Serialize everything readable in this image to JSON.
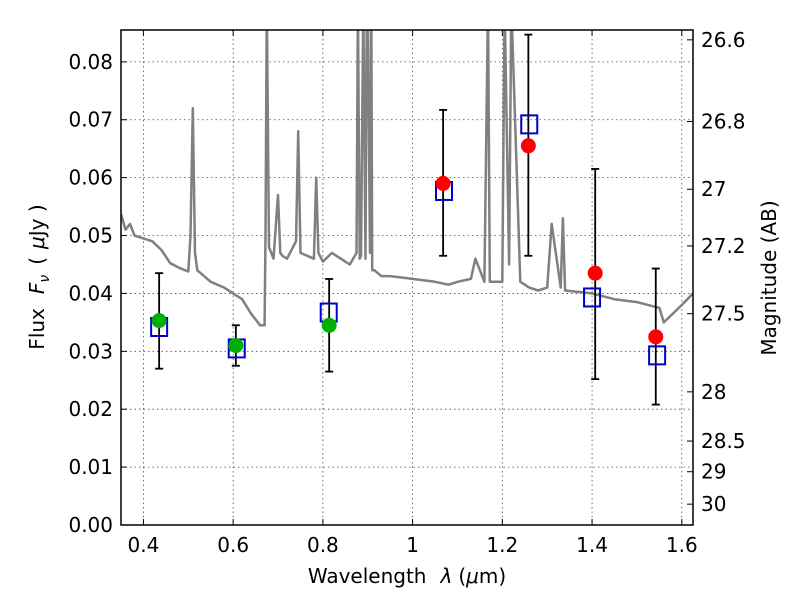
{
  "chart_data": {
    "type": "scatter",
    "xlabel_text": "Wavelength",
    "xlabel_symbol": "λ",
    "xlabel_unit_open": "(",
    "xlabel_unit_mu": "μ",
    "xlabel_unit_rest": "m)",
    "ylabel_text": "Flux",
    "ylabel_symbol_main": "F",
    "ylabel_symbol_sub": "ν",
    "ylabel_unit_open": "(",
    "ylabel_unit_mu": "μ",
    "ylabel_unit_rest": "Jy )",
    "y2label": "Magnitude (AB)",
    "xlim": [
      0.35,
      1.625
    ],
    "ylim": [
      0.0,
      0.0855
    ],
    "grid": true,
    "xticks": [
      {
        "v": 0.4,
        "label": "0.4"
      },
      {
        "v": 0.6,
        "label": "0.6"
      },
      {
        "v": 0.8,
        "label": "0.8"
      },
      {
        "v": 1.0,
        "label": "1"
      },
      {
        "v": 1.2,
        "label": "1.2"
      },
      {
        "v": 1.4,
        "label": "1.4"
      },
      {
        "v": 1.6,
        "label": "1.6"
      }
    ],
    "yticks": [
      {
        "v": 0.0,
        "label": "0.00"
      },
      {
        "v": 0.01,
        "label": "0.01"
      },
      {
        "v": 0.02,
        "label": "0.02"
      },
      {
        "v": 0.03,
        "label": "0.03"
      },
      {
        "v": 0.04,
        "label": "0.04"
      },
      {
        "v": 0.05,
        "label": "0.05"
      },
      {
        "v": 0.06,
        "label": "0.06"
      },
      {
        "v": 0.07,
        "label": "0.07"
      },
      {
        "v": 0.08,
        "label": "0.08"
      }
    ],
    "y2ticks": [
      {
        "flux": 0.0838,
        "label": "26.6"
      },
      {
        "flux": 0.0697,
        "label": "26.8"
      },
      {
        "flux": 0.058,
        "label": "27"
      },
      {
        "flux": 0.0482,
        "label": "27.2"
      },
      {
        "flux": 0.0365,
        "label": "27.5"
      },
      {
        "flux": 0.023,
        "label": "28"
      },
      {
        "flux": 0.0145,
        "label": "28.5"
      },
      {
        "flux": 0.0092,
        "label": "29"
      },
      {
        "flux": 0.0036,
        "label": "30"
      }
    ],
    "colors": {
      "template": "#808080",
      "model": "#0000cc",
      "green": "#00b000",
      "red": "#ff0000",
      "errorbar": "#000000"
    },
    "series": [
      {
        "style": "gray template spectrum line",
        "x": [
          0.35,
          0.36,
          0.37,
          0.38,
          0.4,
          0.42,
          0.44,
          0.46,
          0.48,
          0.5,
          0.505,
          0.51,
          0.515,
          0.52,
          0.55,
          0.58,
          0.6,
          0.62,
          0.64,
          0.66,
          0.67,
          0.672,
          0.675,
          0.68,
          0.69,
          0.7,
          0.705,
          0.71,
          0.72,
          0.74,
          0.745,
          0.75,
          0.78,
          0.785,
          0.79,
          0.8,
          0.82,
          0.84,
          0.86,
          0.875,
          0.878,
          0.882,
          0.885,
          0.89,
          0.895,
          0.898,
          0.9,
          0.905,
          0.908,
          0.91,
          0.915,
          0.93,
          0.95,
          1.0,
          1.05,
          1.08,
          1.1,
          1.13,
          1.14,
          1.16,
          1.168,
          1.172,
          1.18,
          1.2,
          1.205,
          1.215,
          1.22,
          1.24,
          1.26,
          1.28,
          1.3,
          1.31,
          1.33,
          1.335,
          1.34,
          1.4,
          1.45,
          1.5,
          1.55,
          1.56,
          1.6,
          1.625
        ],
        "y": [
          0.0537,
          0.051,
          0.052,
          0.05,
          0.0495,
          0.049,
          0.0475,
          0.0452,
          0.0444,
          0.0438,
          0.05,
          0.072,
          0.047,
          0.044,
          0.042,
          0.041,
          0.04,
          0.039,
          0.0365,
          0.0345,
          0.0345,
          0.05,
          0.09,
          0.048,
          0.046,
          0.057,
          0.047,
          0.0465,
          0.046,
          0.049,
          0.068,
          0.047,
          0.046,
          0.06,
          0.047,
          0.0455,
          0.047,
          0.046,
          0.045,
          0.047,
          0.09,
          0.046,
          0.0465,
          0.09,
          0.046,
          0.09,
          0.09,
          0.047,
          0.09,
          0.044,
          0.044,
          0.043,
          0.043,
          0.0425,
          0.042,
          0.0415,
          0.042,
          0.0425,
          0.046,
          0.042,
          0.09,
          0.042,
          0.042,
          0.042,
          0.09,
          0.045,
          0.09,
          0.042,
          0.041,
          0.0405,
          0.041,
          0.052,
          0.041,
          0.053,
          0.0405,
          0.04,
          0.039,
          0.0385,
          0.0375,
          0.035,
          0.038,
          0.04
        ]
      },
      {
        "name": "",
        "style": "blue open squares",
        "x": [
          0.435,
          0.608,
          0.813,
          1.07,
          1.26,
          1.4,
          1.545
        ],
        "y": [
          0.0342,
          0.0305,
          0.0367,
          0.0577,
          0.0692,
          0.0393,
          0.0293
        ]
      },
      {
        "name": "",
        "style": "green filled circles with error bars",
        "x": [
          0.435,
          0.606,
          0.814
        ],
        "y": [
          0.0353,
          0.031,
          0.0345
        ],
        "err_low": [
          0.027,
          0.0275,
          0.0265
        ],
        "err_high": [
          0.0435,
          0.0345,
          0.0425
        ]
      },
      {
        "name": "",
        "style": "red filled circles with error bars",
        "x": [
          1.068,
          1.258,
          1.407,
          1.542
        ],
        "y": [
          0.059,
          0.0655,
          0.0435,
          0.0325
        ],
        "err_low": [
          0.0465,
          0.0465,
          0.0252,
          0.0208
        ],
        "err_high": [
          0.0717,
          0.0847,
          0.0615,
          0.0443
        ]
      }
    ]
  }
}
